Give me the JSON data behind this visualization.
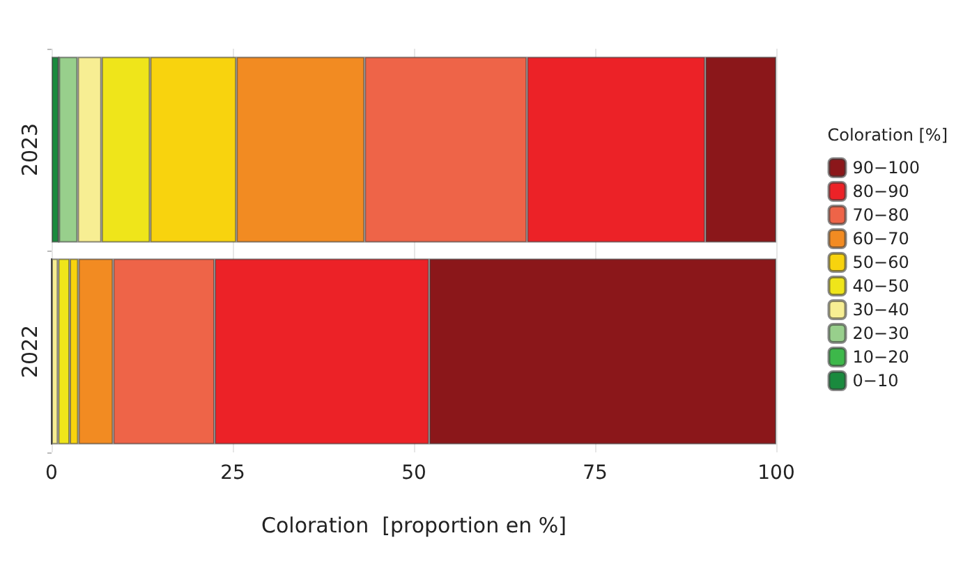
{
  "chart_data": {
    "type": "bar",
    "orientation": "horizontal",
    "stacked": true,
    "categories": [
      "2023",
      "2022"
    ],
    "xlabel": "Coloration  [proportion en %]",
    "legend_title": "Coloration [%]",
    "xlim": [
      0,
      100
    ],
    "xticks": [
      0,
      25,
      50,
      75,
      100
    ],
    "grid": "x",
    "legend": "right",
    "series": [
      {
        "name": "0−10",
        "color": "#1a8a3e",
        "values": [
          1.0,
          0
        ]
      },
      {
        "name": "10−20",
        "color": "#3db84a",
        "values": [
          0,
          0
        ]
      },
      {
        "name": "20−30",
        "color": "#98cf8c",
        "values": [
          2.6,
          0
        ]
      },
      {
        "name": "30−40",
        "color": "#f7ee93",
        "values": [
          3.3,
          0.9
        ]
      },
      {
        "name": "40−50",
        "color": "#efe51a",
        "values": [
          6.7,
          1.6
        ]
      },
      {
        "name": "50−60",
        "color": "#f8d30e",
        "values": [
          11.9,
          1.2
        ]
      },
      {
        "name": "60−70",
        "color": "#f28b22",
        "values": [
          17.7,
          4.8
        ]
      },
      {
        "name": "70−80",
        "color": "#ee6448",
        "values": [
          22.4,
          14.0
        ]
      },
      {
        "name": "80−90",
        "color": "#ec2227",
        "values": [
          24.6,
          29.6
        ]
      },
      {
        "name": "90−100",
        "color": "#8b171a",
        "values": [
          9.8,
          47.9
        ]
      }
    ]
  }
}
